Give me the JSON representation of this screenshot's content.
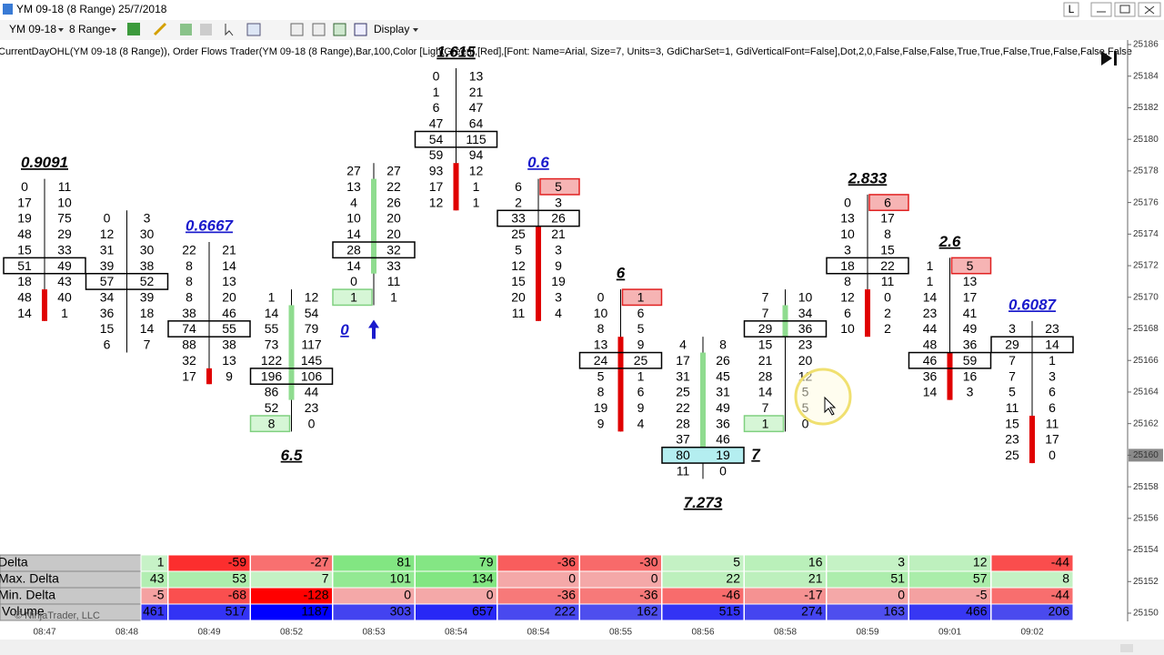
{
  "window": {
    "title": "YM 09-18 (8 Range)  25/7/2018",
    "letter": "L"
  },
  "toolbar": {
    "instrument": "YM 09-18",
    "period": "8 Range",
    "display": "Display"
  },
  "indicator_label": "CurrentDayOHL(YM 09-18 (8 Range)),  Order Flows Trader(YM 09-18 (8 Range),Bar,100,Color [LightGreen],[Red],[Font: Name=Arial, Size=7, Units=3, GdiCharSet=1, GdiVerticalFont=False],Dot,2,0,False,False,False,True,True,False,True,False,False,False",
  "price_axis": {
    "ticks": [
      25186,
      25184,
      25182,
      25180,
      25178,
      25176,
      25174,
      25172,
      25170,
      25168,
      25166,
      25164,
      25162,
      25160,
      25158,
      25156,
      25154,
      25152,
      25150
    ],
    "last_price": 25160
  },
  "bars": [
    {
      "time": "08:47",
      "top": 25177,
      "rows": [
        [
          0,
          11
        ],
        [
          17,
          10
        ],
        [
          19,
          75
        ],
        [
          48,
          29
        ],
        [
          15,
          33
        ],
        [
          51,
          49
        ],
        [
          18,
          43
        ],
        [
          48,
          40
        ],
        [
          14,
          1
        ]
      ],
      "poc": 25172,
      "body": [
        25170,
        25169
      ],
      "body_color": "#e00000",
      "ratio": "0.9091",
      "ratio_color": "#000000"
    },
    {
      "time": "08:48",
      "top": 25175,
      "rows": [
        [
          0,
          3
        ],
        [
          12,
          30
        ],
        [
          31,
          30
        ],
        [
          39,
          38
        ],
        [
          57,
          52
        ],
        [
          34,
          39
        ],
        [
          36,
          18
        ],
        [
          15,
          14
        ],
        [
          6,
          7
        ]
      ],
      "poc": 25171
    },
    {
      "time": "08:49",
      "top": 25173,
      "rows": [
        [
          22,
          21
        ],
        [
          8,
          14
        ],
        [
          8,
          13
        ],
        [
          8,
          20
        ],
        [
          38,
          46
        ],
        [
          74,
          55
        ],
        [
          88,
          38
        ],
        [
          32,
          13
        ],
        [
          17,
          9
        ]
      ],
      "poc": 25168,
      "body": [
        25165,
        25165
      ],
      "body_color": "#e00000",
      "ratio": "0.6667",
      "ratio_color": "#1a1acc"
    },
    {
      "time": "08:52",
      "top": 25170,
      "rows": [
        [
          1,
          12
        ],
        [
          14,
          54
        ],
        [
          55,
          79
        ],
        [
          73,
          117
        ],
        [
          122,
          145
        ],
        [
          196,
          106
        ],
        [
          86,
          44
        ],
        [
          52,
          23
        ],
        [
          8,
          0
        ]
      ],
      "poc": 25165,
      "bid_highlight": 25162,
      "body": [
        25169,
        25164
      ],
      "body_color": "#8fdc8f",
      "ratio": "6.5",
      "ratio_color": "#000000"
    },
    {
      "time": "08:53",
      "top": 25178,
      "rows": [
        [
          27,
          27
        ],
        [
          13,
          22
        ],
        [
          4,
          26
        ],
        [
          10,
          20
        ],
        [
          14,
          20
        ],
        [
          28,
          32
        ],
        [
          14,
          33
        ],
        [
          0,
          11
        ],
        [
          1,
          1
        ]
      ],
      "poc": 25173,
      "bid_highlight": 25170,
      "body": [
        25177,
        25172
      ],
      "body_color": "#8fdc8f",
      "ratio": "0",
      "ratio_color": "#1a1acc"
    },
    {
      "time": "08:54",
      "top": 25184,
      "rows": [
        [
          0,
          13
        ],
        [
          1,
          21
        ],
        [
          6,
          47
        ],
        [
          47,
          64
        ],
        [
          54,
          115
        ],
        [
          59,
          94
        ],
        [
          93,
          12
        ],
        [
          17,
          1
        ],
        [
          12,
          1
        ]
      ],
      "poc": 25180,
      "body": [
        25178,
        25176
      ],
      "body_color": "#e00000",
      "ratio": "1.615",
      "ratio_color": "#000000"
    },
    {
      "time": "08:54",
      "top": 25177,
      "rows": [
        [
          6,
          5
        ],
        [
          2,
          3
        ],
        [
          33,
          26
        ],
        [
          25,
          21
        ],
        [
          5,
          3
        ],
        [
          12,
          9
        ],
        [
          15,
          19
        ],
        [
          20,
          3
        ],
        [
          11,
          4
        ]
      ],
      "poc": 25175,
      "ask_highlight": 25177,
      "body": [
        25174,
        25169
      ],
      "body_color": "#e00000",
      "ratio": "0.6",
      "ratio_color": "#1a1acc"
    },
    {
      "time": "08:55",
      "top": 25170,
      "rows": [
        [
          0,
          1
        ],
        [
          10,
          6
        ],
        [
          8,
          5
        ],
        [
          13,
          9
        ],
        [
          24,
          25
        ],
        [
          5,
          1
        ],
        [
          8,
          6
        ],
        [
          19,
          9
        ],
        [
          9,
          4
        ]
      ],
      "poc": 25166,
      "ask_highlight": 25170,
      "body": [
        25167,
        25162
      ],
      "body_color": "#e00000",
      "ratio": "6",
      "ratio_color": "#000000"
    },
    {
      "time": "08:56",
      "top": 25167,
      "rows": [
        [
          4,
          8
        ],
        [
          17,
          26
        ],
        [
          31,
          45
        ],
        [
          25,
          31
        ],
        [
          22,
          49
        ],
        [
          28,
          36
        ],
        [
          37,
          46
        ],
        [
          80,
          19
        ],
        [
          11,
          0
        ]
      ],
      "poc": 25160,
      "poc_fill": "#b4eef0",
      "body": [
        25166,
        25161
      ],
      "body_color": "#8fdc8f",
      "ratio": "7.273",
      "ratio_color": "#000000",
      "side_label": "7"
    },
    {
      "time": "08:58",
      "top": 25170,
      "rows": [
        [
          7,
          10
        ],
        [
          7,
          34
        ],
        [
          29,
          36
        ],
        [
          15,
          23
        ],
        [
          21,
          20
        ],
        [
          28,
          12
        ],
        [
          14,
          5
        ],
        [
          7,
          5
        ],
        [
          1,
          0
        ]
      ],
      "poc": 25168,
      "bid_highlight": 25162,
      "body": [
        25169,
        25168
      ],
      "body_color": "#8fdc8f"
    },
    {
      "time": "08:59",
      "top": 25176,
      "rows": [
        [
          0,
          6
        ],
        [
          13,
          17
        ],
        [
          10,
          8
        ],
        [
          3,
          15
        ],
        [
          18,
          22
        ],
        [
          8,
          11
        ],
        [
          12,
          0
        ],
        [
          6,
          2
        ],
        [
          10,
          2
        ]
      ],
      "poc": 25172,
      "ask_highlight": 25176,
      "body": [
        25170,
        25168
      ],
      "body_color": "#e00000",
      "ratio": "2.833",
      "ratio_color": "#000000"
    },
    {
      "time": "09:01",
      "top": 25172,
      "rows": [
        [
          1,
          5
        ],
        [
          1,
          13
        ],
        [
          14,
          17
        ],
        [
          23,
          41
        ],
        [
          44,
          49
        ],
        [
          48,
          36
        ],
        [
          46,
          59
        ],
        [
          36,
          16
        ],
        [
          14,
          3
        ]
      ],
      "poc": 25166,
      "ask_highlight": 25172,
      "body": [
        25166,
        25164
      ],
      "body_color": "#e00000",
      "ratio": "2.6",
      "ratio_color": "#000000"
    },
    {
      "time": "09:02",
      "top": 25168,
      "rows": [
        [
          3,
          23
        ],
        [
          29,
          14
        ],
        [
          7,
          1
        ],
        [
          7,
          3
        ],
        [
          5,
          6
        ],
        [
          11,
          6
        ],
        [
          15,
          11
        ],
        [
          23,
          17
        ],
        [
          25,
          0
        ]
      ],
      "poc": 25167,
      "body": [
        25162,
        25160
      ],
      "body_color": "#e00000",
      "ratio": "0.6087",
      "ratio_color": "#1a1acc"
    }
  ],
  "table": {
    "row_labels": [
      "Delta",
      "Max. Delta",
      "Min. Delta",
      "Volume"
    ],
    "rows": [
      [
        1,
        -59,
        -27,
        81,
        79,
        -36,
        -30,
        5,
        16,
        3,
        12,
        -44
      ],
      [
        43,
        53,
        7,
        101,
        134,
        0,
        0,
        22,
        21,
        51,
        57,
        8
      ],
      [
        -5,
        -68,
        -128,
        0,
        0,
        -36,
        -36,
        -46,
        -17,
        0,
        -5,
        -44
      ],
      [
        461,
        517,
        1187,
        303,
        657,
        222,
        162,
        515,
        274,
        163,
        466,
        206
      ]
    ]
  },
  "copyright": "© NinjaTrader, LLC"
}
